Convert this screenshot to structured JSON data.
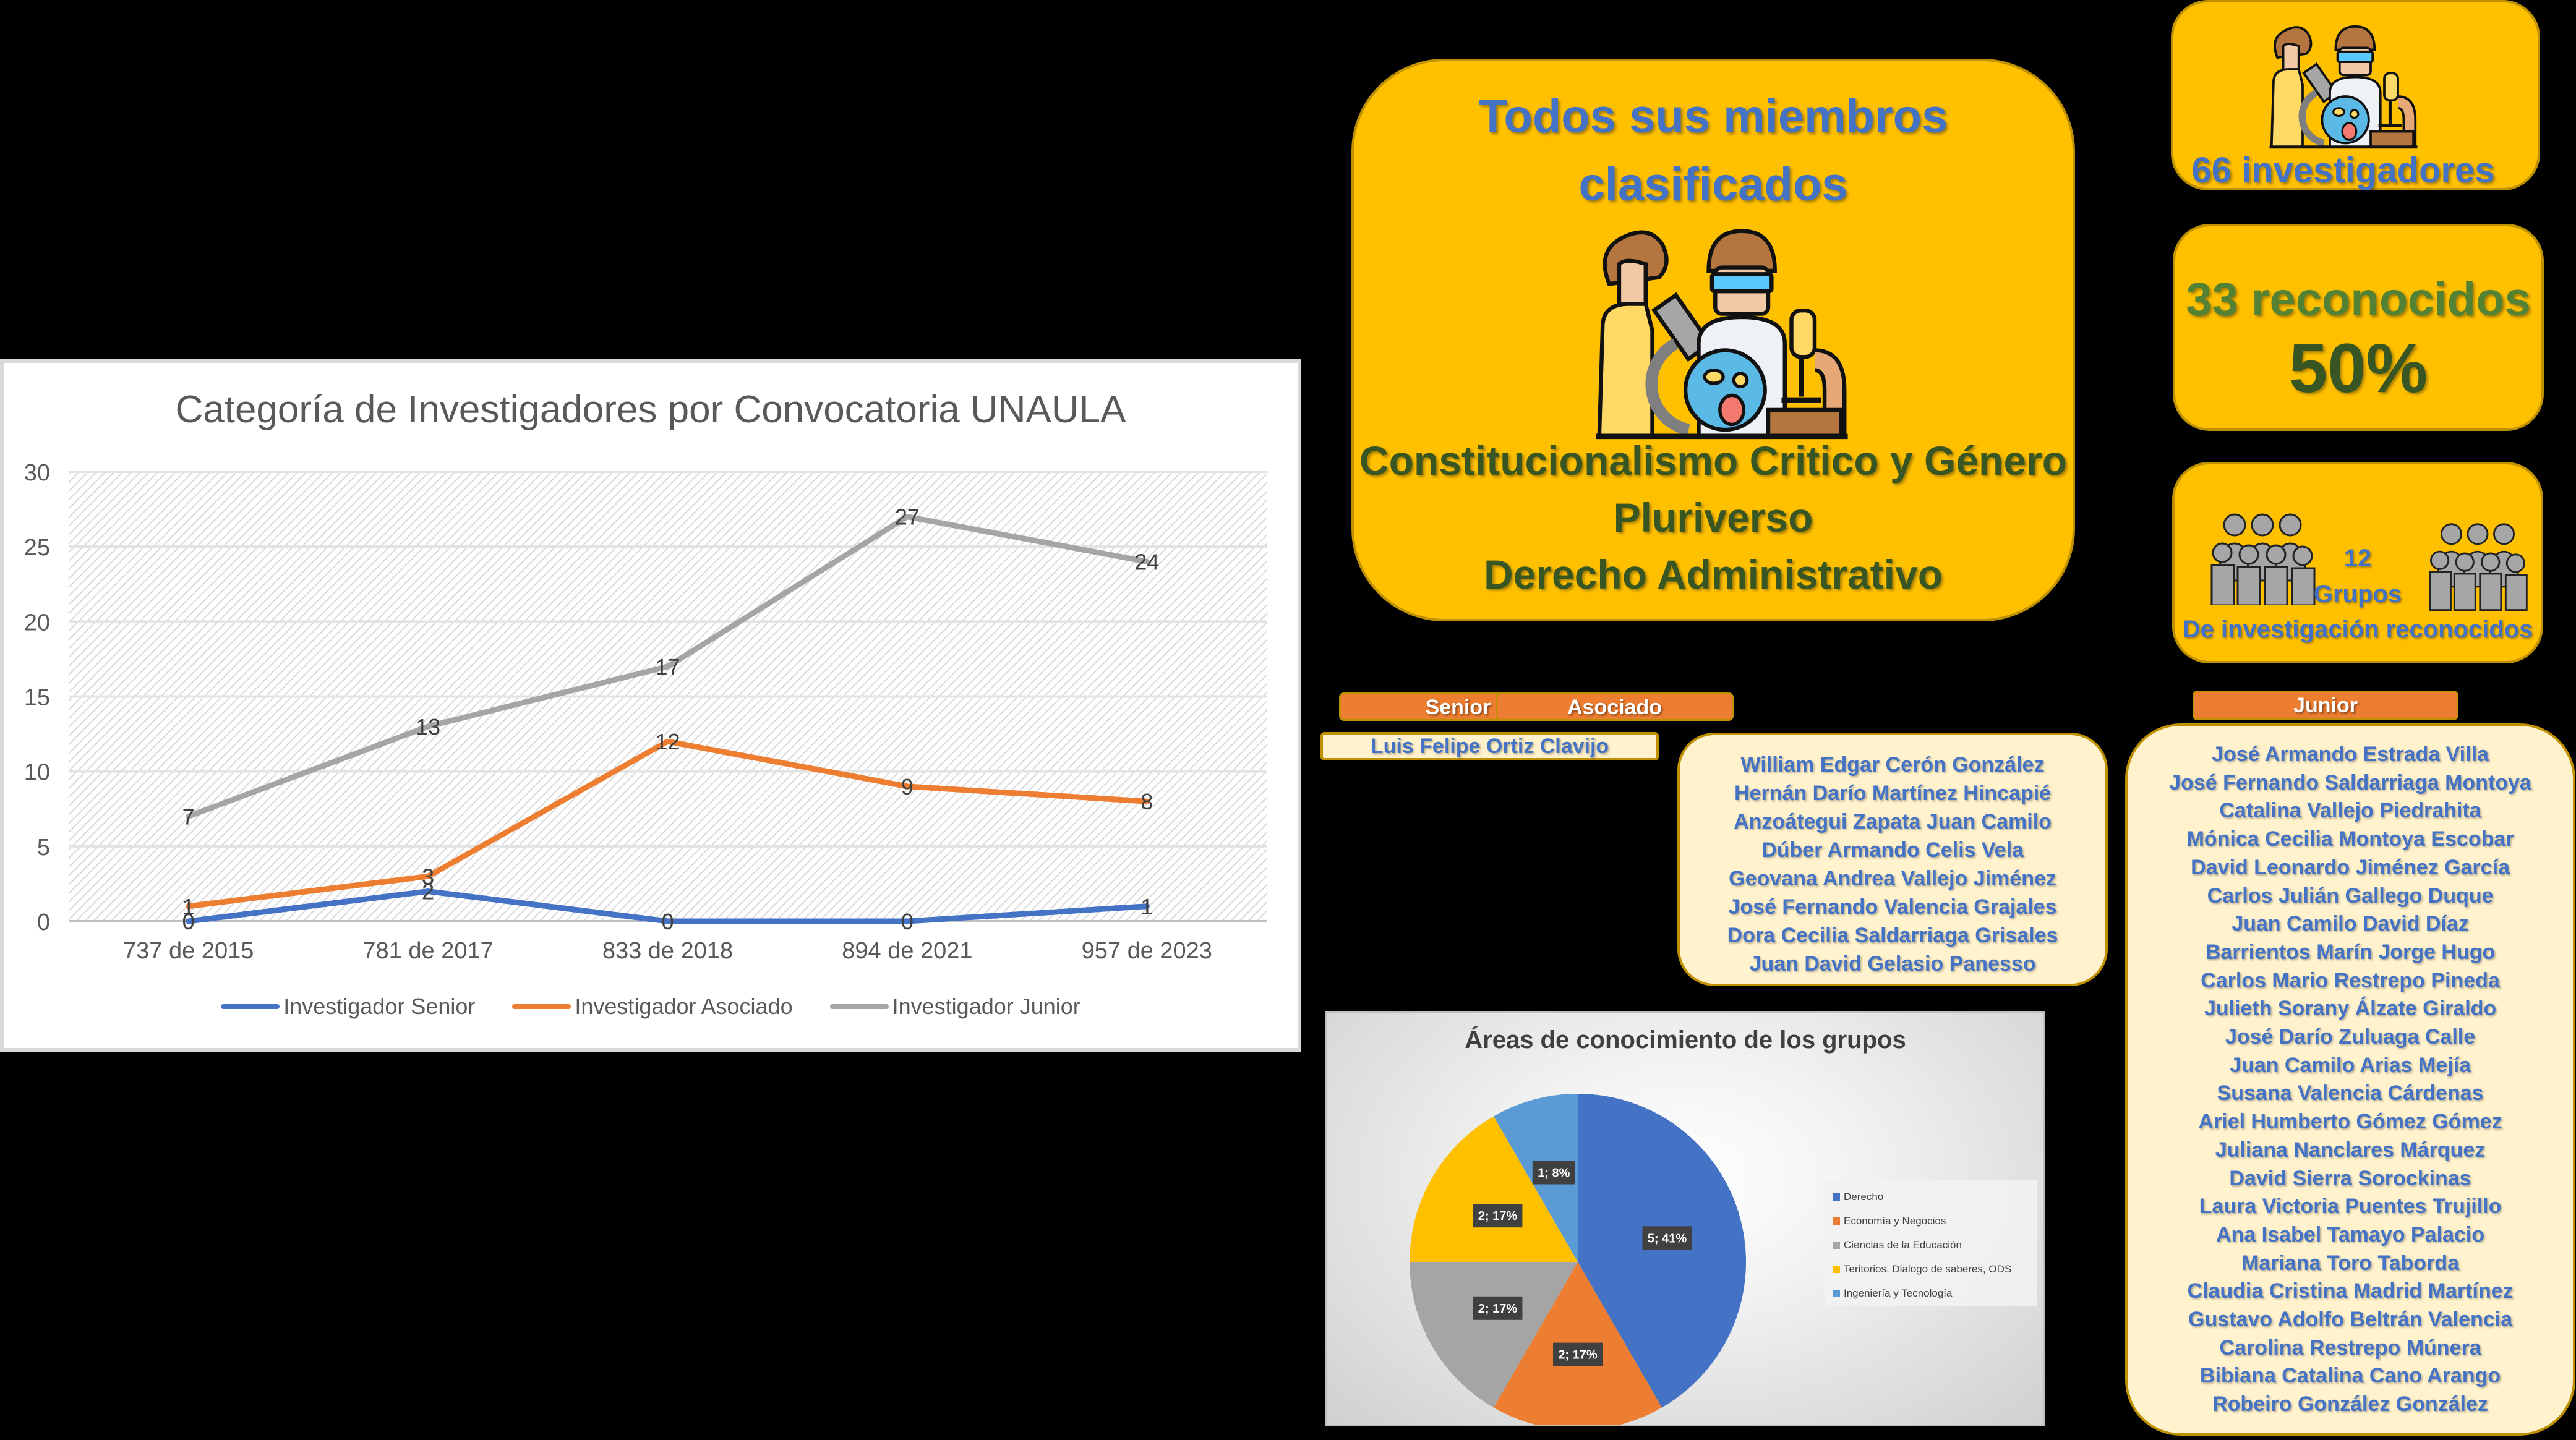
{
  "line_chart": {
    "title": "Categoría de Investigadores  por Convocatoria UNAULA",
    "y_ticks": [
      "0",
      "5",
      "10",
      "15",
      "20",
      "25",
      "30"
    ],
    "x_labels": [
      "737 de 2015",
      "781 de 2017",
      "833 de 2018",
      "894 de 2021",
      "957 de 2023"
    ],
    "legend": [
      "Investigador Senior",
      "Investigador Asociado",
      "Investigador Junior"
    ]
  },
  "chart_data": [
    {
      "type": "line",
      "title": "Categoría de Investigadores  por Convocatoria UNAULA",
      "xlabel": "",
      "ylabel": "",
      "categories": [
        "737 de 2015",
        "781 de 2017",
        "833 de 2018",
        "894 de 2021",
        "957 de 2023"
      ],
      "series": [
        {
          "name": "Investigador Senior",
          "color": "#4472c4",
          "values": [
            0,
            2,
            0,
            0,
            1
          ]
        },
        {
          "name": "Investigador Asociado",
          "color": "#ed7d31",
          "values": [
            1,
            3,
            12,
            9,
            8
          ]
        },
        {
          "name": "Investigador Junior",
          "color": "#a5a5a5",
          "values": [
            7,
            13,
            17,
            27,
            24
          ]
        }
      ],
      "ylim": [
        0,
        30
      ],
      "yticks": [
        0,
        5,
        10,
        15,
        20,
        25,
        30
      ],
      "grid": true,
      "data_labels": true,
      "legend_position": "bottom"
    },
    {
      "type": "pie",
      "title": "Áreas de conocimiento de los grupos",
      "categories": [
        "Derecho",
        "Economía y Negocios",
        "Ciencias de la Educación",
        "Teritorios, Dialogo de saberes, ODS",
        "Ingeniería y Tecnología"
      ],
      "values": [
        5,
        2,
        2,
        2,
        1
      ],
      "labels": [
        "5; 41%",
        "2; 17%",
        "2; 17%",
        "2; 17%",
        "1; 8%"
      ],
      "colors": [
        "#4472c4",
        "#ed7d31",
        "#a5a5a5",
        "#ffc000",
        "#5b9bd5"
      ],
      "legend_position": "right"
    }
  ],
  "members_card": {
    "heading_line1": "Todos sus miembros",
    "heading_line2": "clasificados",
    "icon": "scientists-icon",
    "groups": [
      "Constitucionalismo Critico y Género",
      "Pluriverso",
      "Derecho Administrativo"
    ]
  },
  "researchers_card": {
    "icon": "scientists-icon",
    "label": "66 investigadores"
  },
  "recognized_card": {
    "line1": "33 reconocidos",
    "line2": "50%"
  },
  "groups_card": {
    "icon": "people-group-icon",
    "number": "12",
    "label": "Grupos",
    "description": "De investigación reconocidos"
  },
  "categories": {
    "senior": {
      "header": "Senior",
      "names": [
        "Luis Felipe Ortiz Clavijo"
      ]
    },
    "asociado": {
      "header": "Asociado",
      "names": [
        "William Edgar Cerón González",
        "Hernán Darío Martínez Hincapié",
        "Anzoátegui Zapata Juan Camilo",
        "Dúber Armando Celis Vela",
        "Geovana Andrea Vallejo Jiménez",
        "José Fernando Valencia Grajales",
        "Dora Cecilia Saldarriaga Grisales",
        "Juan David Gelasio Panesso"
      ]
    },
    "junior": {
      "header": "Junior",
      "names": [
        "José Armando Estrada Villa",
        "José Fernando Saldarriaga Montoya",
        "Catalina Vallejo Piedrahita",
        "Mónica Cecilia Montoya Escobar",
        "David Leonardo Jiménez García",
        "Carlos Julián Gallego Duque",
        "Juan Camilo David Díaz",
        "Barrientos Marín Jorge Hugo",
        "Carlos Mario Restrepo Pineda",
        "Julieth Sorany Álzate Giraldo",
        "José Darío Zuluaga Calle",
        "Juan Camilo Arias Mejía",
        "Susana Valencia Cárdenas",
        "Ariel Humberto Gómez Gómez",
        "Juliana Nanclares Márquez",
        "David Sierra Sorockinas",
        "Laura Victoria Puentes Trujillo",
        "Ana Isabel Tamayo Palacio",
        "Mariana Toro Taborda",
        "Claudia Cristina Madrid Martínez",
        "Gustavo Adolfo Beltrán Valencia",
        "Carolina Restrepo Múnera",
        "Bibiana Catalina  Cano Arango",
        "Robeiro González González"
      ]
    }
  },
  "pie_chart": {
    "title": "Áreas de conocimiento de los grupos",
    "legend": [
      "Derecho",
      "Economía y Negocios",
      "Ciencias de la Educación",
      "Teritorios, Dialogo de saberes, ODS",
      "Ingeniería y Tecnología"
    ]
  }
}
